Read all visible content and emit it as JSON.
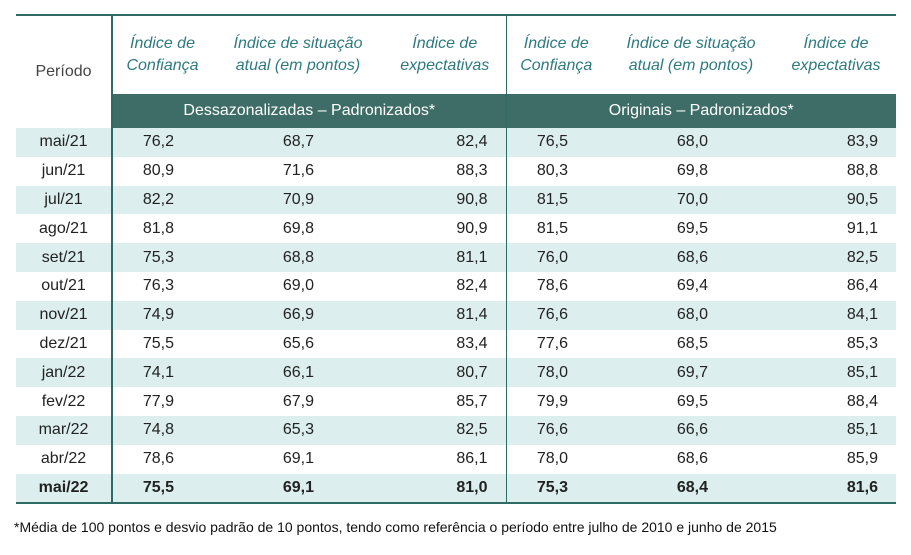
{
  "table": {
    "period_header": "Período",
    "columns": [
      "Índice de Confiança",
      "Índice de situação atual (em pontos)",
      "Índice de expectativas",
      "Índice de Confiança",
      "Índice de situação atual (em pontos)",
      "Índice de expectativas"
    ],
    "col_lines": [
      [
        "Índice de",
        "Confiança"
      ],
      [
        "Índice de situação",
        "atual (em pontos)"
      ],
      [
        "Índice de",
        "expectativas"
      ],
      [
        "Índice de",
        "Confiança"
      ],
      [
        "Índice de situação",
        "atual (em pontos)"
      ],
      [
        "Índice de",
        "expectativas"
      ]
    ],
    "group_left": "Dessazonalizadas – Padronizados*",
    "group_right": "Originais – Padronizados*",
    "rows": [
      {
        "period": "mai/21",
        "values": [
          "76,2",
          "68,7",
          "82,4",
          "76,5",
          "68,0",
          "83,9"
        ]
      },
      {
        "period": "jun/21",
        "values": [
          "80,9",
          "71,6",
          "88,3",
          "80,3",
          "69,8",
          "88,8"
        ]
      },
      {
        "period": "jul/21",
        "values": [
          "82,2",
          "70,9",
          "90,8",
          "81,5",
          "70,0",
          "90,5"
        ]
      },
      {
        "period": "ago/21",
        "values": [
          "81,8",
          "69,8",
          "90,9",
          "81,5",
          "69,5",
          "91,1"
        ]
      },
      {
        "period": "set/21",
        "values": [
          "75,3",
          "68,8",
          "81,1",
          "76,0",
          "68,6",
          "82,5"
        ]
      },
      {
        "period": "out/21",
        "values": [
          "76,3",
          "69,0",
          "82,4",
          "78,6",
          "69,4",
          "86,4"
        ]
      },
      {
        "period": "nov/21",
        "values": [
          "74,9",
          "66,9",
          "81,4",
          "76,6",
          "68,0",
          "84,1"
        ]
      },
      {
        "period": "dez/21",
        "values": [
          "75,5",
          "65,6",
          "83,4",
          "77,6",
          "68,5",
          "85,3"
        ]
      },
      {
        "period": "jan/22",
        "values": [
          "74,1",
          "66,1",
          "80,7",
          "78,0",
          "69,7",
          "85,1"
        ]
      },
      {
        "period": "fev/22",
        "values": [
          "77,9",
          "67,9",
          "85,7",
          "79,9",
          "69,5",
          "88,4"
        ]
      },
      {
        "period": "mar/22",
        "values": [
          "74,8",
          "65,3",
          "82,5",
          "76,6",
          "66,6",
          "85,1"
        ]
      },
      {
        "period": "abr/22",
        "values": [
          "78,6",
          "69,1",
          "86,1",
          "78,0",
          "68,6",
          "85,9"
        ]
      },
      {
        "period": "mai/22",
        "values": [
          "75,5",
          "69,1",
          "81,0",
          "75,3",
          "68,4",
          "81,6"
        ]
      }
    ]
  },
  "footnote": "*Média de 100 pontos e desvio padrão de 10 pontos, tendo como referência o período entre julho de 2010 e junho de 2015",
  "colors": {
    "header_band": "#3d6d66",
    "header_text": "#2e7a80",
    "stripe": "#dcefee",
    "rule": "#2f6b64"
  }
}
